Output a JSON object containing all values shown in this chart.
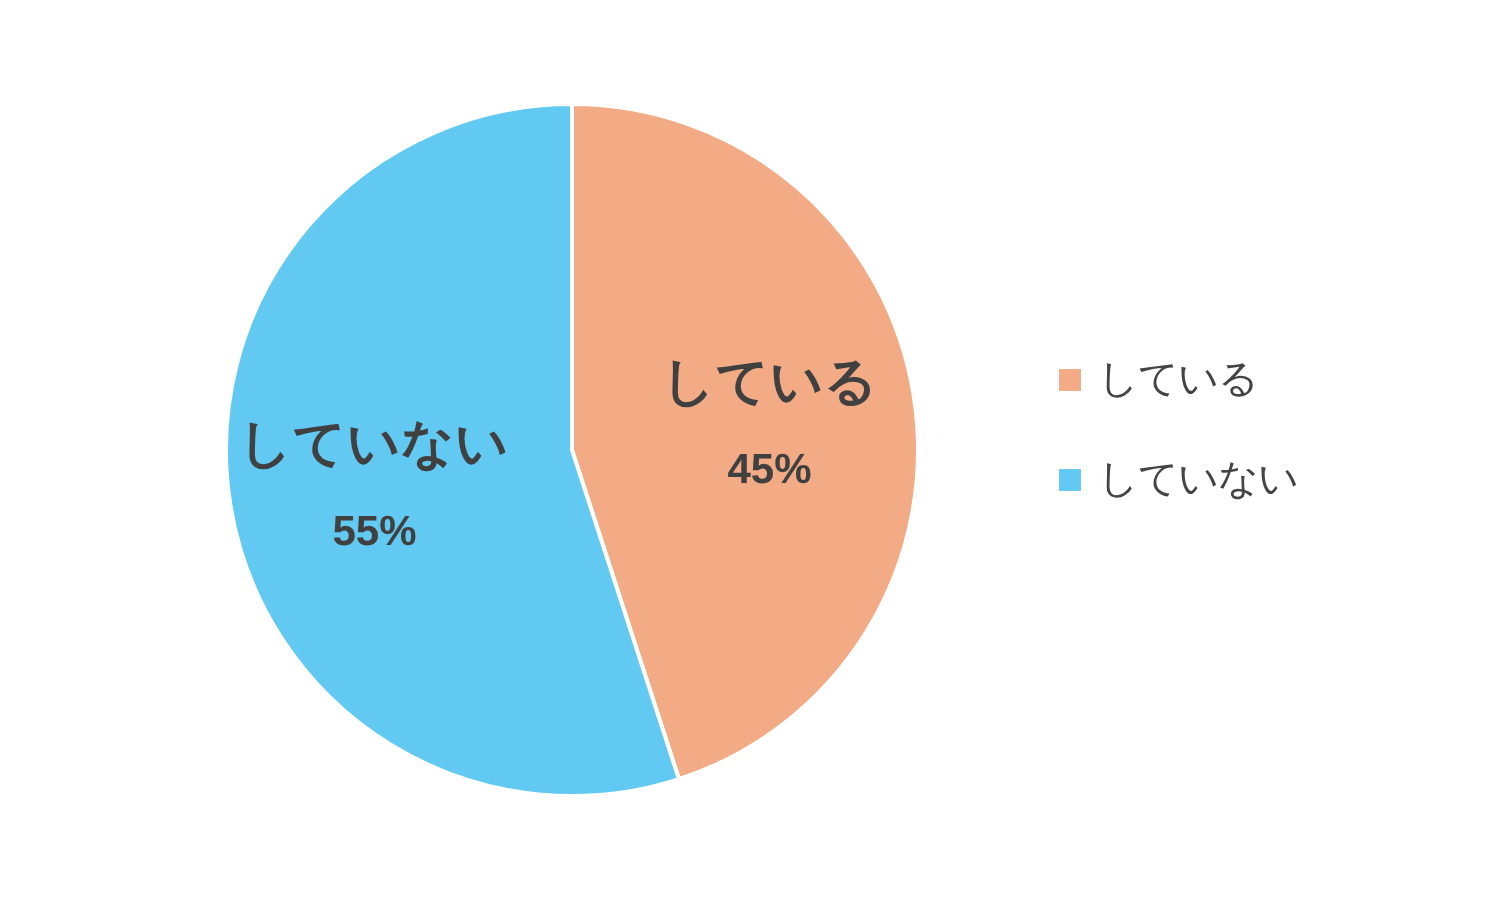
{
  "chart_data": {
    "type": "pie",
    "categories": [
      "している",
      "していない"
    ],
    "values": [
      45,
      55
    ],
    "colors": [
      "#f2ab85",
      "#62c9f2"
    ],
    "value_labels": [
      "45%",
      "55%"
    ],
    "legend": "right"
  }
}
